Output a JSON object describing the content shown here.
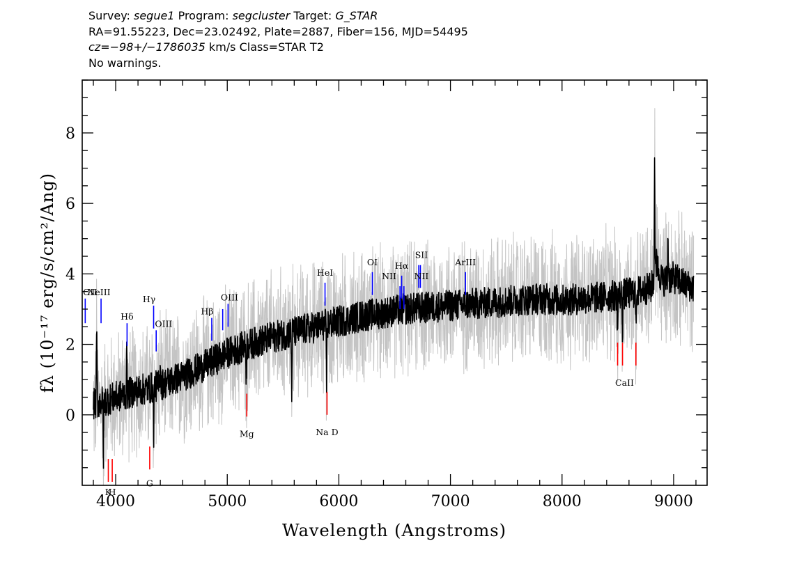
{
  "header": {
    "line1": {
      "survey_label": "Survey:",
      "survey": "segue1",
      "program_label": "Program:",
      "program": "segcluster",
      "target_label": "Target:",
      "target": "G_STAR"
    },
    "line2": "RA=91.55223, Dec=23.02492, Plate=2887, Fiber=156, MJD=54495",
    "line3": {
      "cz": "cz=−98+/−1786035",
      "rest": "km/s Class=STAR T2"
    },
    "line4": "No warnings."
  },
  "chart_data": {
    "type": "line",
    "xlabel": "Wavelength (Angstroms)",
    "ylabel": "fλ (10⁻¹⁷ erg/s/cm²/Ang)",
    "xlim": [
      3700,
      9300
    ],
    "ylim": [
      -2.0,
      9.5
    ],
    "x_ticks": [
      4000,
      5000,
      6000,
      7000,
      8000,
      9000
    ],
    "x_tick_labels": [
      "4000",
      "5000",
      "6000",
      "7000",
      "8000",
      "9000"
    ],
    "y_ticks": [
      0,
      2,
      4,
      6,
      8
    ],
    "y_tick_labels": [
      "0",
      "2",
      "4",
      "6",
      "8"
    ],
    "colors": {
      "flux": "#000000",
      "error": "#c4c4c4",
      "emission": "#0000ff",
      "absorption": "#ff0000"
    },
    "series": [
      {
        "style": "gray-noise",
        "x": [
          3800,
          3900,
          4000,
          4100,
          4200,
          4300,
          4400,
          4600,
          4800,
          5000,
          5200,
          5400,
          5600,
          5800,
          6000,
          6200,
          6400,
          6600,
          6800,
          7000,
          7200,
          7400,
          7600,
          7800,
          8000,
          8200,
          8400,
          8600,
          8800,
          8850,
          8900,
          9000,
          9100,
          9200
        ],
        "y": [
          0.3,
          0.4,
          0.5,
          0.6,
          0.7,
          0.75,
          0.85,
          1.1,
          1.4,
          1.75,
          2.0,
          2.2,
          2.35,
          2.5,
          2.65,
          2.8,
          2.9,
          3.0,
          3.05,
          3.1,
          3.15,
          3.2,
          3.25,
          3.3,
          3.25,
          3.3,
          3.35,
          3.45,
          3.6,
          4.2,
          3.8,
          3.9,
          3.7,
          3.6
        ],
        "amplitude": 1.8
      },
      {
        "style": "black-flux",
        "x": [
          3800,
          3900,
          4000,
          4100,
          4200,
          4300,
          4400,
          4600,
          4800,
          5000,
          5200,
          5400,
          5600,
          5800,
          6000,
          6200,
          6400,
          6600,
          6800,
          7000,
          7200,
          7400,
          7600,
          7800,
          8000,
          8200,
          8400,
          8600,
          8800,
          8850,
          8900,
          9000,
          9100,
          9200
        ],
        "y": [
          0.3,
          0.4,
          0.5,
          0.6,
          0.7,
          0.75,
          0.85,
          1.1,
          1.4,
          1.75,
          2.0,
          2.2,
          2.35,
          2.5,
          2.65,
          2.8,
          2.9,
          3.0,
          3.05,
          3.1,
          3.15,
          3.2,
          3.25,
          3.3,
          3.25,
          3.3,
          3.35,
          3.45,
          3.6,
          4.2,
          3.8,
          3.9,
          3.7,
          3.6
        ],
        "amplitude": 0.45
      }
    ],
    "features": [
      {
        "x": 3830,
        "y": 2.5
      },
      {
        "x": 3890,
        "y": -1.2
      },
      {
        "x": 4100,
        "y": 1.9
      },
      {
        "x": 4340,
        "y": -0.8
      },
      {
        "x": 4400,
        "y": 1.8
      },
      {
        "x": 5170,
        "y": 1.0
      },
      {
        "x": 5577,
        "y": 0.4
      },
      {
        "x": 5890,
        "y": 0.8
      },
      {
        "x": 8498,
        "y": 2.2
      },
      {
        "x": 8542,
        "y": 2.3
      },
      {
        "x": 8662,
        "y": 2.5
      },
      {
        "x": 8830,
        "y": 7.7
      },
      {
        "x": 8850,
        "y": 5.0
      },
      {
        "x": 8950,
        "y": 5.2
      }
    ],
    "emission_lines": [
      {
        "label": "OII",
        "x": 3727,
        "y0": 2.6,
        "y1": 3.3
      },
      {
        "label": "NeIII",
        "x": 3869,
        "y0": 2.6,
        "y1": 3.3
      },
      {
        "label": "Hδ",
        "x": 4102,
        "y0": 1.95,
        "y1": 2.6
      },
      {
        "label": "Hγ",
        "x": 4340,
        "y0": 2.45,
        "y1": 3.1
      },
      {
        "label": "OIII",
        "x": 4363,
        "y0": 1.8,
        "y1": 2.4
      },
      {
        "label": "Hβ",
        "x": 4861,
        "y0": 2.1,
        "y1": 2.75
      },
      {
        "label": "OIII",
        "x": 4959,
        "y0": 2.4,
        "y1": 3.0
      },
      {
        "label": "OIII",
        "x": 5007,
        "y0": 2.5,
        "y1": 3.15
      },
      {
        "label": "HeI",
        "x": 5876,
        "y0": 3.1,
        "y1": 3.75
      },
      {
        "label": "OI",
        "x": 6300,
        "y0": 3.4,
        "y1": 4.05
      },
      {
        "label": "NII",
        "x": 6548,
        "y0": 3.0,
        "y1": 3.65
      },
      {
        "label": "Hα",
        "x": 6563,
        "y0": 3.3,
        "y1": 3.95
      },
      {
        "label": "NII",
        "x": 6583,
        "y0": 3.0,
        "y1": 3.65
      },
      {
        "label": "SII",
        "x": 6716,
        "y0": 3.6,
        "y1": 4.25
      },
      {
        "label": "SII",
        "x": 6731,
        "y0": 3.6,
        "y1": 4.25
      },
      {
        "label": "ArIII",
        "x": 7135,
        "y0": 3.4,
        "y1": 4.05
      }
    ],
    "absorption_lines": [
      {
        "label": "K",
        "x": 3934,
        "y0": -1.9,
        "y1": -1.25
      },
      {
        "label": "H",
        "x": 3969,
        "y0": -1.9,
        "y1": -1.25
      },
      {
        "label": "G",
        "x": 4305,
        "y0": -1.55,
        "y1": -0.9
      },
      {
        "label": "Mg",
        "x": 5175,
        "y0": -0.05,
        "y1": 0.6
      },
      {
        "label": "Na D",
        "x": 5894,
        "y0": 0.0,
        "y1": 0.65
      },
      {
        "label": "CaII",
        "x": 8498,
        "y0": 1.4,
        "y1": 2.05
      },
      {
        "label": "CaII",
        "x": 8542,
        "y0": 1.4,
        "y1": 2.05
      },
      {
        "label": "CaII",
        "x": 8662,
        "y0": 1.4,
        "y1": 2.05
      }
    ],
    "emission_text": [
      {
        "label": "OII",
        "x": 3770,
        "y": 3.3
      },
      {
        "label": "NeIII",
        "x": 3850,
        "y": 3.3
      },
      {
        "label": "Hδ",
        "x": 4102,
        "y": 2.6
      },
      {
        "label": "Hγ",
        "x": 4300,
        "y": 3.1
      },
      {
        "label": "OIII",
        "x": 4430,
        "y": 2.4
      },
      {
        "label": "Hβ",
        "x": 4820,
        "y": 2.75
      },
      {
        "label": "OIII",
        "x": 5020,
        "y": 3.15
      },
      {
        "label": "HeI",
        "x": 5876,
        "y": 3.85
      },
      {
        "label": "OI",
        "x": 6300,
        "y": 4.15
      },
      {
        "label": "NII",
        "x": 6450,
        "y": 3.75
      },
      {
        "label": "Hα",
        "x": 6563,
        "y": 4.05
      },
      {
        "label": "SII",
        "x": 6740,
        "y": 4.35
      },
      {
        "label": "NII",
        "x": 6740,
        "y": 3.75
      },
      {
        "label": "ArIII",
        "x": 7135,
        "y": 4.15
      }
    ],
    "absorption_text": [
      {
        "label": "K",
        "x": 3934,
        "y": -2.0
      },
      {
        "label": "H",
        "x": 3969,
        "y": -2.0
      },
      {
        "label": "G",
        "x": 4305,
        "y": -1.75
      },
      {
        "label": "Mg",
        "x": 5175,
        "y": -0.35
      },
      {
        "label": "Na D",
        "x": 5894,
        "y": -0.3
      },
      {
        "label": "CaII",
        "x": 8560,
        "y": 1.1
      }
    ]
  }
}
